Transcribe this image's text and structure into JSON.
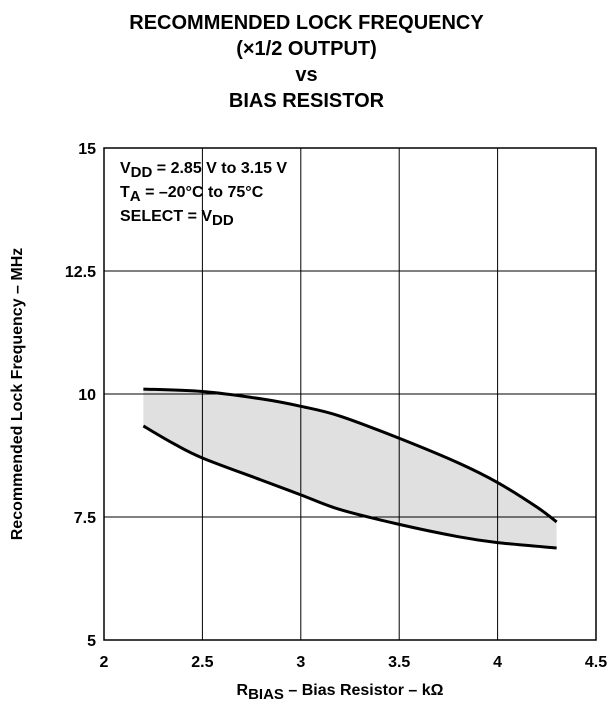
{
  "title_lines": [
    "RECOMMENDED LOCK FREQUENCY",
    "(×1/2 OUTPUT)",
    "vs",
    "BIAS RESISTOR"
  ],
  "chart_data": {
    "type": "area",
    "title": "RECOMMENDED LOCK FREQUENCY (×1/2 OUTPUT) vs BIAS RESISTOR",
    "xlabel": {
      "prefix": "R",
      "sub": "BIAS",
      "suffix": " – Bias Resistor – kΩ"
    },
    "ylabel": "Recommended Lock Frequency – MHz",
    "xlim": [
      2,
      4.5
    ],
    "ylim": [
      5,
      15
    ],
    "x_ticks": [
      2,
      2.5,
      3,
      3.5,
      4,
      4.5
    ],
    "x_tick_labels": [
      "2",
      "2.5",
      "3",
      "3.5",
      "4",
      "4.5"
    ],
    "y_ticks": [
      5,
      7.5,
      10,
      12.5,
      15
    ],
    "y_tick_labels": [
      "5",
      "7.5",
      "10",
      "12.5",
      "15"
    ],
    "grid": true,
    "annotations": [
      {
        "pre": "V",
        "sub": "DD",
        "post": " = 2.85 V to 3.15 V"
      },
      {
        "pre": "T",
        "sub": "A",
        "post": " = –20°C to 75°C"
      },
      {
        "pre": "SELECT = V",
        "sub": "DD",
        "post": ""
      }
    ],
    "upper_curve": {
      "x": [
        2.2,
        2.5,
        2.8,
        3.0,
        3.2,
        3.5,
        3.8,
        4.0,
        4.2,
        4.3
      ],
      "y": [
        10.1,
        10.05,
        9.9,
        9.75,
        9.55,
        9.1,
        8.6,
        8.2,
        7.7,
        7.4
      ]
    },
    "lower_curve": {
      "x": [
        2.2,
        2.35,
        2.5,
        2.8,
        3.0,
        3.2,
        3.5,
        3.8,
        4.0,
        4.3
      ],
      "y": [
        9.35,
        9.0,
        8.7,
        8.25,
        7.95,
        7.65,
        7.35,
        7.1,
        6.98,
        6.87
      ]
    },
    "band_fill": "#e0e0e0",
    "line_color": "#000000"
  }
}
